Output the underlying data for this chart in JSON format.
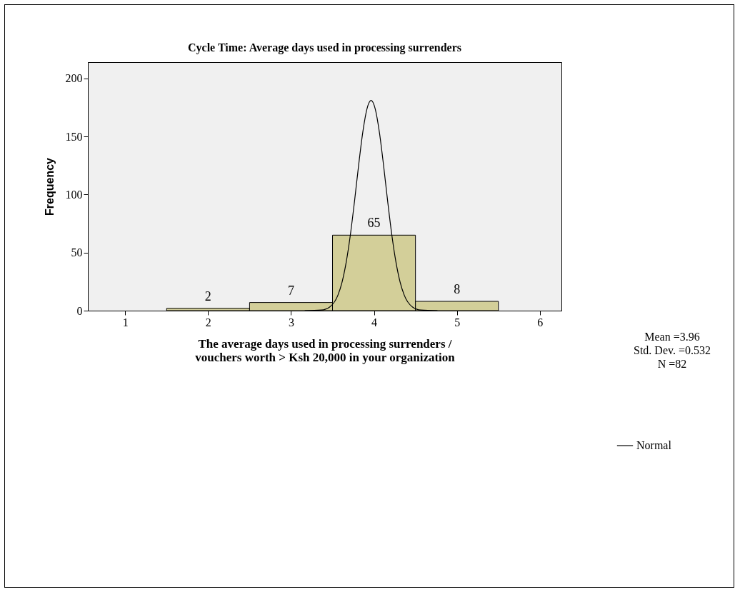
{
  "chart_data": {
    "type": "histogram",
    "title": "Cycle Time: Average days used in processing surrenders",
    "xlabel": "The average days used in processing surrenders / vouchers worth > Ksh 20,000 in your organization",
    "ylabel": "Frequency",
    "bins": [
      1.5,
      2.5,
      3.5,
      4.5,
      5.5
    ],
    "values": [
      2,
      7,
      65,
      8
    ],
    "color": "#d3cf99",
    "value_labels": [
      "2",
      "7",
      "65",
      "8"
    ],
    "series": [
      {
        "type": "line",
        "name": "Normal",
        "color": "#000000",
        "x": [
          3.165,
          3.365,
          3.465,
          3.565,
          3.615,
          3.665,
          3.715,
          3.765,
          3.815,
          3.865,
          3.915,
          3.965,
          4.015,
          4.065,
          4.115,
          4.165,
          4.215,
          4.265,
          4.315,
          4.365,
          4.465,
          4.565,
          4.765
        ],
        "values": [
          0,
          0.5,
          3.1,
          13.3,
          24.5,
          41.7,
          65.2,
          94.1,
          125.4,
          153.7,
          173.7,
          181,
          173.7,
          153.7,
          125.4,
          94.1,
          65.2,
          41.7,
          24.5,
          13.3,
          3.1,
          0.5,
          0
        ]
      }
    ],
    "xlim": [
      0.55,
      6.26
    ],
    "xticks": [
      1,
      2,
      3,
      4,
      5,
      6
    ],
    "ylim": [
      0,
      214
    ],
    "yticks": [
      0,
      50,
      100,
      150,
      200
    ],
    "grid": false,
    "legend": "right",
    "annotations": [
      "Mean =3.96",
      "Std. Dev. =0.532",
      "N =82"
    ]
  }
}
